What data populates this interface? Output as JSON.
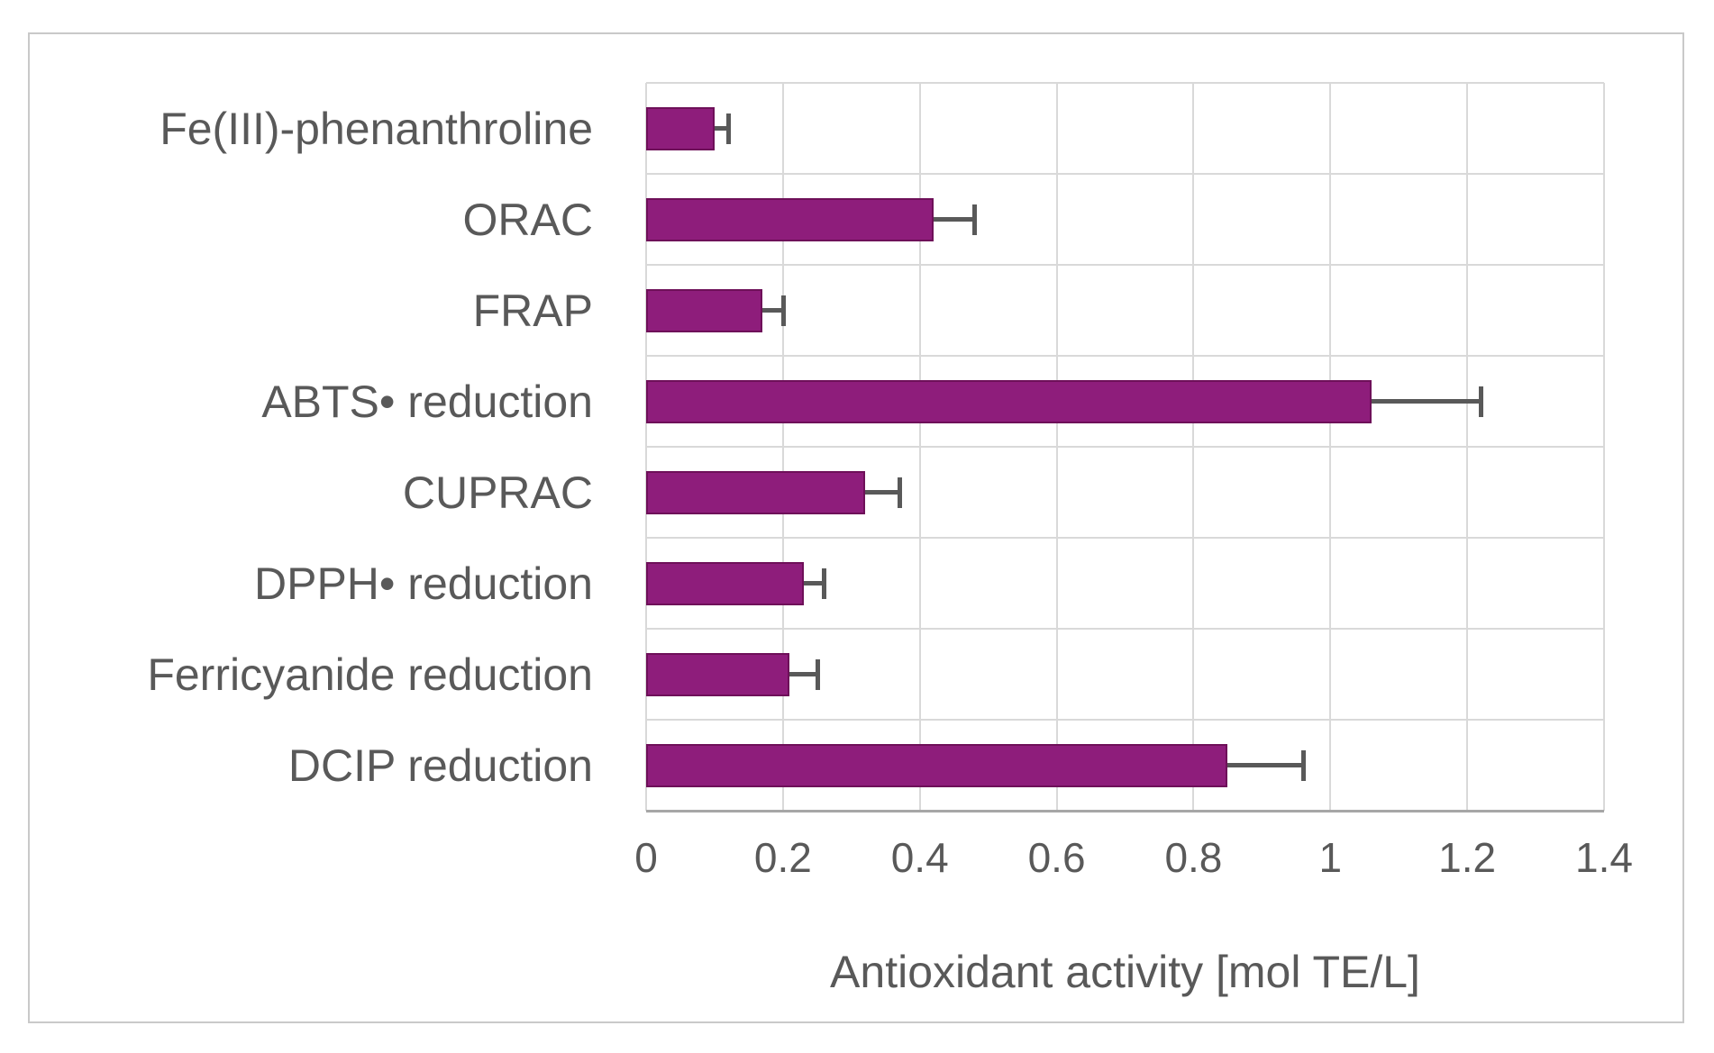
{
  "chart_data": {
    "type": "bar",
    "orientation": "horizontal",
    "title": "",
    "xlabel": "Antioxidant activity [mol TE/L]",
    "ylabel": "",
    "xlim": [
      0,
      1.4
    ],
    "xtick_labels": [
      "0",
      "0.2",
      "0.4",
      "0.6",
      "0.8",
      "1",
      "1.2",
      "1.4"
    ],
    "grid": true,
    "legend": "none",
    "categories": [
      "Fe(III)-phenanthroline",
      "ORAC",
      "FRAP",
      "ABTS• reduction",
      "CUPRAC",
      "DPPH• reduction",
      "Ferricyanide reduction",
      "DCIP reduction"
    ],
    "series": [
      {
        "name": "Antioxidant activity [mol TE/L]",
        "values": [
          0.1,
          0.42,
          0.17,
          1.06,
          0.32,
          0.23,
          0.21,
          0.85
        ],
        "errors_plus": [
          0.02,
          0.06,
          0.03,
          0.16,
          0.05,
          0.03,
          0.04,
          0.11
        ]
      }
    ],
    "colors": {
      "bar_fill": "#8e1d7b",
      "bar_border": "#6e1059",
      "error_bar": "#595959",
      "gridline": "#d9d9d9",
      "axis_line": "#a6a6a6",
      "text": "#595959",
      "frame_border": "#c9c9c9"
    }
  }
}
